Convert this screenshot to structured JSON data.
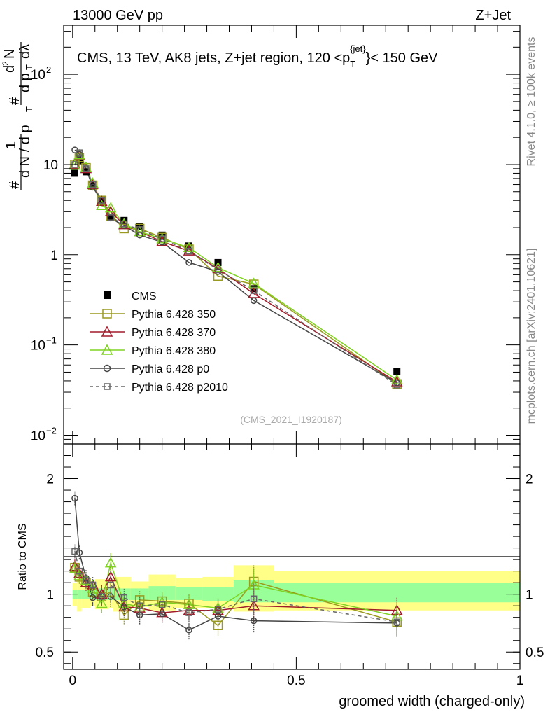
{
  "header": {
    "left": "13000 GeV pp",
    "right": "Z+Jet"
  },
  "side_labels": {
    "rivet": "Rivet 4.1.0, ≥ 100k events",
    "mcplots": "mcplots.cern.ch [arXiv:2401.10621]"
  },
  "colors": {
    "cms": "#000000",
    "p350": "#9a9a1e",
    "p370": "#a01a2a",
    "p380": "#7ed321",
    "p0": "#444444",
    "p2010": "#666666",
    "band_stat": "#99ff99",
    "band_total": "#ffff88"
  },
  "chart_data": [
    {
      "type": "line",
      "panel": "main",
      "title": "CMS, 13 TeV, AK8 jets, Z+jet region, 120 <p_T^{jet}< 150 GeV",
      "title_parts": {
        "prefix": "CMS, 13 TeV, AK8 jets, Z+jet region, 120 <p",
        "sub": "T",
        "sup": "{jet}",
        "suffix": "}< 150 GeV"
      },
      "ylabel": "1/dN/dp_T dN/dp_T dλ",
      "yscale": "log",
      "ylim": [
        0.008,
        350
      ],
      "xlim": [
        -0.02,
        1.0
      ],
      "y_ticks": [
        {
          "value": 0.01,
          "label": "10",
          "exp": "−2"
        },
        {
          "value": 0.1,
          "label": "10",
          "exp": "−1"
        },
        {
          "value": 1,
          "label": "1",
          "exp": ""
        },
        {
          "value": 10,
          "label": "10",
          "exp": ""
        },
        {
          "value": 100,
          "label": "10",
          "exp": "2"
        }
      ],
      "watermark": "(CMS_2021_I1920187)",
      "legend": [
        "CMS",
        "Pythia 6.428 350",
        "Pythia 6.428 370",
        "Pythia 6.428 380",
        "Pythia 6.428 p0",
        "Pythia 6.428 p2010"
      ],
      "x": [
        0.005,
        0.015,
        0.03,
        0.045,
        0.065,
        0.085,
        0.115,
        0.15,
        0.2,
        0.26,
        0.325,
        0.405,
        0.725
      ],
      "series": [
        {
          "name": "CMS",
          "values": [
            8.0,
            11.0,
            8.3,
            6.0,
            4.1,
            2.6,
            2.4,
            2.05,
            1.65,
            1.25,
            0.82,
            0.42,
            0.051
          ]
        },
        {
          "name": "Pythia 6.428 350",
          "values": [
            10.0,
            12.0,
            9.2,
            5.9,
            4.0,
            2.7,
            1.95,
            1.95,
            1.55,
            1.15,
            0.58,
            0.47,
            0.037
          ]
        },
        {
          "name": "Pythia 6.428 370",
          "values": [
            10.0,
            12.5,
            9.0,
            6.0,
            3.9,
            3.0,
            2.15,
            1.8,
            1.4,
            1.1,
            0.7,
            0.37,
            0.039
          ]
        },
        {
          "name": "Pythia 6.428 380",
          "values": [
            9.8,
            12.8,
            9.3,
            6.2,
            3.5,
            3.3,
            2.2,
            1.8,
            1.5,
            1.2,
            0.72,
            0.48,
            0.041
          ]
        },
        {
          "name": "Pythia 6.428 p0",
          "values": [
            14.5,
            13.0,
            9.0,
            5.6,
            4.0,
            2.55,
            2.1,
            1.65,
            1.38,
            0.82,
            0.65,
            0.31,
            0.038
          ]
        },
        {
          "name": "Pythia 6.428 p2010",
          "values": [
            10.0,
            13.5,
            9.0,
            6.0,
            4.0,
            2.6,
            2.2,
            1.9,
            1.5,
            1.1,
            0.68,
            0.4,
            0.036
          ]
        }
      ]
    },
    {
      "type": "line",
      "panel": "ratio",
      "xlabel": "groomed width (charged-only)",
      "ylabel": "Ratio to CMS",
      "ylim": [
        0.35,
        2.3
      ],
      "xlim": [
        -0.02,
        1.0
      ],
      "y_ticks": [
        0.5,
        1,
        2
      ],
      "y_tick_labels": [
        "0.5",
        "1",
        "2"
      ],
      "x_ticks": [
        0,
        0.5,
        1
      ],
      "x_tick_labels": [
        "0",
        "0.5",
        "1"
      ],
      "bands": [
        {
          "x0": 0.0,
          "x1": 0.01,
          "stat_lo": 0.96,
          "stat_hi": 1.04,
          "tot_lo": 0.9,
          "tot_hi": 1.1
        },
        {
          "x0": 0.01,
          "x1": 0.02,
          "stat_lo": 0.96,
          "stat_hi": 1.04,
          "tot_lo": 0.85,
          "tot_hi": 1.15
        },
        {
          "x0": 0.02,
          "x1": 0.04,
          "stat_lo": 0.96,
          "stat_hi": 1.04,
          "tot_lo": 0.88,
          "tot_hi": 1.12
        },
        {
          "x0": 0.04,
          "x1": 0.05,
          "stat_lo": 0.96,
          "stat_hi": 1.04,
          "tot_lo": 0.9,
          "tot_hi": 1.1
        },
        {
          "x0": 0.05,
          "x1": 0.08,
          "stat_lo": 0.95,
          "stat_hi": 1.05,
          "tot_lo": 0.87,
          "tot_hi": 1.13
        },
        {
          "x0": 0.08,
          "x1": 0.09,
          "stat_lo": 0.95,
          "stat_hi": 1.05,
          "tot_lo": 0.88,
          "tot_hi": 1.12
        },
        {
          "x0": 0.09,
          "x1": 0.13,
          "stat_lo": 0.95,
          "stat_hi": 1.05,
          "tot_lo": 0.85,
          "tot_hi": 1.15
        },
        {
          "x0": 0.13,
          "x1": 0.17,
          "stat_lo": 0.95,
          "stat_hi": 1.05,
          "tot_lo": 0.89,
          "tot_hi": 1.11
        },
        {
          "x0": 0.17,
          "x1": 0.23,
          "stat_lo": 0.95,
          "stat_hi": 1.07,
          "tot_lo": 0.86,
          "tot_hi": 1.17
        },
        {
          "x0": 0.23,
          "x1": 0.29,
          "stat_lo": 0.95,
          "stat_hi": 1.06,
          "tot_lo": 0.88,
          "tot_hi": 1.14
        },
        {
          "x0": 0.29,
          "x1": 0.36,
          "stat_lo": 0.94,
          "stat_hi": 1.06,
          "tot_lo": 0.88,
          "tot_hi": 1.15
        },
        {
          "x0": 0.36,
          "x1": 0.45,
          "stat_lo": 0.93,
          "stat_hi": 1.12,
          "tot_lo": 0.85,
          "tot_hi": 1.25
        },
        {
          "x0": 0.45,
          "x1": 1.0,
          "stat_lo": 0.93,
          "stat_hi": 1.1,
          "tot_lo": 0.86,
          "tot_hi": 1.2
        }
      ],
      "x": [
        0.005,
        0.015,
        0.03,
        0.045,
        0.065,
        0.085,
        0.115,
        0.15,
        0.2,
        0.26,
        0.325,
        0.405,
        0.725
      ],
      "series": [
        {
          "name": "Pythia 6.428 350",
          "values": [
            1.23,
            1.15,
            1.1,
            1.02,
            0.98,
            1.02,
            0.82,
            0.95,
            0.94,
            0.92,
            0.73,
            1.11,
            0.76
          ],
          "err": [
            0.06,
            0.06,
            0.07,
            0.07,
            0.08,
            0.09,
            0.08,
            0.08,
            0.08,
            0.08,
            0.09,
            0.14,
            0.12
          ]
        },
        {
          "name": "Pythia 6.428 370",
          "values": [
            1.24,
            1.18,
            1.1,
            1.08,
            1.0,
            1.15,
            0.89,
            0.88,
            0.84,
            0.86,
            0.86,
            0.9,
            0.86
          ],
          "err": [
            0.06,
            0.06,
            0.07,
            0.07,
            0.08,
            0.09,
            0.08,
            0.08,
            0.08,
            0.08,
            0.09,
            0.14,
            0.12
          ]
        },
        {
          "name": "Pythia 6.428 380",
          "values": [
            1.22,
            1.16,
            1.12,
            1.05,
            0.92,
            1.27,
            0.92,
            0.89,
            0.93,
            0.91,
            0.88,
            1.08,
            0.81
          ],
          "err": [
            0.06,
            0.06,
            0.07,
            0.07,
            0.08,
            0.09,
            0.08,
            0.08,
            0.08,
            0.08,
            0.09,
            0.14,
            0.12
          ]
        },
        {
          "name": "Pythia 6.428 p0",
          "values": [
            1.83,
            1.36,
            1.14,
            0.97,
            0.98,
            0.98,
            0.89,
            0.82,
            0.83,
            0.69,
            0.81,
            0.77,
            0.75
          ],
          "err": [
            0.06,
            0.06,
            0.07,
            0.07,
            0.08,
            0.09,
            0.08,
            0.08,
            0.08,
            0.08,
            0.09,
            0.1,
            0.12
          ]
        },
        {
          "name": "Pythia 6.428 p2010",
          "values": [
            1.37,
            1.2,
            1.12,
            1.08,
            0.98,
            1.08,
            0.97,
            0.9,
            0.91,
            0.84,
            0.87,
            0.96,
            0.76
          ],
          "err": [
            0.06,
            0.06,
            0.07,
            0.07,
            0.08,
            0.09,
            0.08,
            0.08,
            0.08,
            0.08,
            0.09,
            0.14,
            0.12
          ]
        }
      ]
    }
  ]
}
